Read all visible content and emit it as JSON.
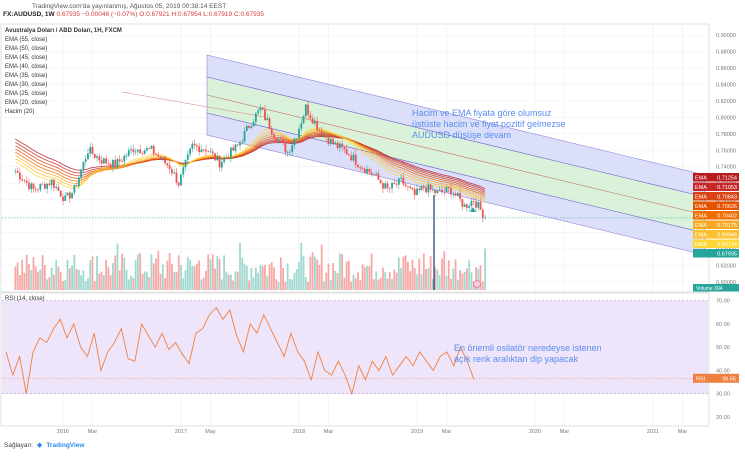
{
  "header": {
    "publisher": "TradingView.com'da yayınlanmış, Ağustos 05, 2019 00:38:14 EEST"
  },
  "symbol_line": {
    "symbol": "FX:AUDUSD, 1W",
    "last": "0.67935",
    "change": "−0.00046 (−0.07%)",
    "open": "O:0.67921",
    "high": "H:0.67954",
    "low": "L:0.67919",
    "close": "C:0.67935"
  },
  "legend": {
    "title": "Avustralya Doları / ABD Doları, 1H, FXCM",
    "items": [
      "EMA (55, close)",
      "EMA (50, close)",
      "EMA (45, close)",
      "EMA (40, close)",
      "EMA (35, close)",
      "EMA (30, close)",
      "EMA (25, close)",
      "EMA (20, close)",
      "Hacim (20)"
    ]
  },
  "annotations": {
    "price": [
      "Hacim ve EMA fiyata göre olumsuz",
      "üstüste hacim ve fiyat pozitif gelmezse",
      "AUDUSD düşüşe devam"
    ],
    "rsi": [
      "En önemli osilatör neredeyse istenen",
      "açık renk aralıktan dip yapacak"
    ]
  },
  "rsi_panel": {
    "label": "RSI (14, close)",
    "badge_name": "RSI",
    "badge_value": "36.65"
  },
  "volume_badge": "Volume  304",
  "ema_badges": [
    {
      "name": "EMA",
      "value": "0.71254",
      "color": "#b71c1c"
    },
    {
      "name": "EMA",
      "value": "0.71053",
      "color": "#c62828"
    },
    {
      "name": "EMA",
      "value": "0.70843",
      "color": "#d84315"
    },
    {
      "name": "EMA",
      "value": "0.70626",
      "color": "#e65100"
    },
    {
      "name": "EMA",
      "value": "0.70402",
      "color": "#ef6c00"
    },
    {
      "name": "EMA",
      "value": "0.70175",
      "color": "#f9a825"
    },
    {
      "name": "EMA",
      "value": "0.69946",
      "color": "#fbc02d"
    },
    {
      "name": "EMA",
      "value": "0.69714",
      "color": "#fdd835"
    }
  ],
  "last_price_badge": {
    "value": "0.67935",
    "color": "#26a69a"
  },
  "footer": {
    "label": "Sağlayan:",
    "brand": "TradingView"
  },
  "colors": {
    "up": "#26a69a",
    "down": "#ef5350",
    "channel": "#6a5acd",
    "ema_band": "#f3c9a0",
    "rsi_line": "#f08040",
    "rsi_band": "#e9dcf8",
    "annotation": "#5a8df0"
  },
  "chart_data": [
    {
      "type": "candlestick",
      "title": "Avustralya Doları / ABD Doları, 1H, FXCM",
      "yaxis_ticks": [
        "0.90000",
        "0.88000",
        "0.86000",
        "0.84000",
        "0.82000",
        "0.80000",
        "0.78000",
        "0.76000",
        "0.74000",
        "0.72000",
        "0.70000",
        "0.68000",
        "0.66000",
        "0.64000",
        "0.62000",
        "0.60000"
      ],
      "ylim": [
        0.59,
        0.91
      ],
      "xaxis_ticks": [
        "2016",
        "Mar",
        "2017",
        "May",
        "2018",
        "Mar",
        "2019",
        "Mar",
        "2020",
        "Mar",
        "2021",
        "Mar"
      ],
      "close_path": [
        {
          "x": "2015-W32",
          "y": 0.735
        },
        {
          "x": "2015-W40",
          "y": 0.712
        },
        {
          "x": "2015-W48",
          "y": 0.722
        },
        {
          "x": "2016-W02",
          "y": 0.7
        },
        {
          "x": "2016-W06",
          "y": 0.712
        },
        {
          "x": "2016-W12",
          "y": 0.76
        },
        {
          "x": "2016-W18",
          "y": 0.748
        },
        {
          "x": "2016-W24",
          "y": 0.742
        },
        {
          "x": "2016-W32",
          "y": 0.762
        },
        {
          "x": "2016-W40",
          "y": 0.76
        },
        {
          "x": "2016-W48",
          "y": 0.74
        },
        {
          "x": "2016-W52",
          "y": 0.72
        },
        {
          "x": "2017-W06",
          "y": 0.765
        },
        {
          "x": "2017-W12",
          "y": 0.762
        },
        {
          "x": "2017-W18",
          "y": 0.745
        },
        {
          "x": "2017-W26",
          "y": 0.765
        },
        {
          "x": "2017-W32",
          "y": 0.795
        },
        {
          "x": "2017-W36",
          "y": 0.81
        },
        {
          "x": "2017-W42",
          "y": 0.78
        },
        {
          "x": "2017-W48",
          "y": 0.758
        },
        {
          "x": "2017-W52",
          "y": 0.78
        },
        {
          "x": "2018-W04",
          "y": 0.812
        },
        {
          "x": "2018-W10",
          "y": 0.785
        },
        {
          "x": "2018-W16",
          "y": 0.768
        },
        {
          "x": "2018-W22",
          "y": 0.758
        },
        {
          "x": "2018-W28",
          "y": 0.742
        },
        {
          "x": "2018-W34",
          "y": 0.73
        },
        {
          "x": "2018-W40",
          "y": 0.712
        },
        {
          "x": "2018-W46",
          "y": 0.722
        },
        {
          "x": "2018-W52",
          "y": 0.705
        },
        {
          "x": "2019-W04",
          "y": 0.715
        },
        {
          "x": "2019-W10",
          "y": 0.708
        },
        {
          "x": "2019-W16",
          "y": 0.712
        },
        {
          "x": "2019-W22",
          "y": 0.692
        },
        {
          "x": "2019-W26",
          "y": 0.7
        },
        {
          "x": "2019-W31",
          "y": 0.679
        }
      ]
    },
    {
      "type": "line",
      "title": "RSI (14, close)",
      "yaxis_ticks": [
        "70.00",
        "60.00",
        "50.00",
        "40.00",
        "30.00",
        "20.00"
      ],
      "ylim": [
        17,
        72
      ],
      "band": [
        30,
        70
      ],
      "last_value": 36.65,
      "values": [
        48,
        38,
        46,
        30,
        48,
        54,
        52,
        58,
        62,
        54,
        60,
        50,
        46,
        56,
        40,
        48,
        52,
        58,
        45,
        44,
        60,
        55,
        50,
        56,
        49,
        52,
        47,
        43,
        56,
        58,
        64,
        67,
        62,
        66,
        55,
        48,
        60,
        56,
        64,
        58,
        52,
        46,
        56,
        48,
        44,
        36,
        48,
        40,
        38,
        44,
        38,
        30,
        42,
        36,
        44,
        40,
        46,
        38,
        42,
        46,
        42,
        48,
        44,
        40,
        46,
        48,
        42,
        50,
        44,
        36
      ]
    }
  ]
}
